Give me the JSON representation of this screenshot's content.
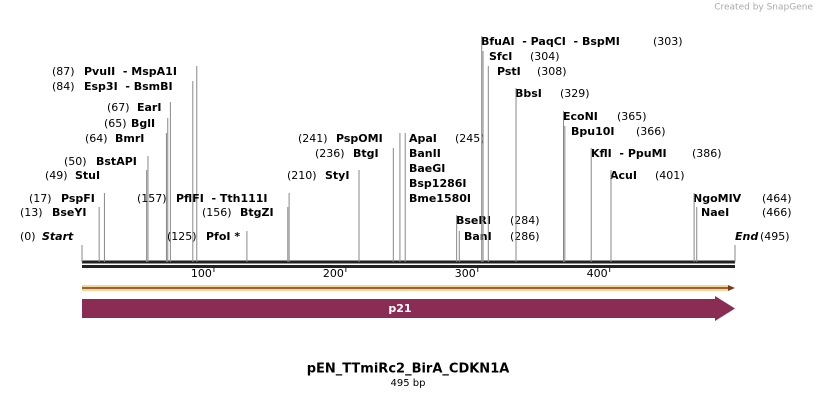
{
  "credit": "Created by SnapGene",
  "title": "pEN_TTmiRc2_BirA_CDKN1A",
  "length_label": "495 bp",
  "ruler_ticks": [
    100,
    200,
    300,
    400
  ],
  "ends": [
    {
      "position": "(0)",
      "names": [
        "Start"
      ]
    },
    {
      "position": "(495)",
      "names": [
        "End"
      ]
    }
  ],
  "feature": {
    "label": "p21"
  },
  "sites": [
    {
      "position": "(13)",
      "names": [
        "BseYI"
      ]
    },
    {
      "position": "(17)",
      "names": [
        "PspFI"
      ]
    },
    {
      "position": "(49)",
      "names": [
        "StuI"
      ]
    },
    {
      "position": "(50)",
      "names": [
        "BstAPI"
      ]
    },
    {
      "position": "(64)",
      "names": [
        "BmrI"
      ]
    },
    {
      "position": "(65)",
      "names": [
        "BglI"
      ]
    },
    {
      "position": "(67)",
      "names": [
        "EarI"
      ]
    },
    {
      "position": "(84)",
      "names": [
        "Esp3I  - BsmBI"
      ]
    },
    {
      "position": "(87)",
      "names": [
        "PvuII  - MspA1I"
      ]
    },
    {
      "position": "(125)",
      "names": [
        "PfoI *"
      ]
    },
    {
      "position": "(156)",
      "names": [
        "BtgZI"
      ]
    },
    {
      "position": "(157)",
      "names": [
        "PflFI  - Tth111I"
      ]
    },
    {
      "position": "(210)",
      "names": [
        "StyI"
      ]
    },
    {
      "position": "(236)",
      "names": [
        "BtgI"
      ]
    },
    {
      "position": "(241)",
      "names": [
        "PspOMI"
      ]
    },
    {
      "position": "(245)",
      "names": [
        "ApaI",
        "BanII",
        "BaeGI",
        "Bsp1286I",
        "Bme1580I"
      ]
    },
    {
      "position": "(284)",
      "names": [
        "BseRI"
      ]
    },
    {
      "position": "(286)",
      "names": [
        "BanI"
      ]
    },
    {
      "position": "(303)",
      "names": [
        "BfuAI  - PaqCI  - BspMI"
      ]
    },
    {
      "position": "(304)",
      "names": [
        "SfcI"
      ]
    },
    {
      "position": "(308)",
      "names": [
        "PstI"
      ]
    },
    {
      "position": "(329)",
      "names": [
        "BbsI"
      ]
    },
    {
      "position": "(365)",
      "names": [
        "EcoNI"
      ]
    },
    {
      "position": "(366)",
      "names": [
        "Bpu10I"
      ]
    },
    {
      "position": "(386)",
      "names": [
        "KflI  - PpuMI"
      ]
    },
    {
      "position": "(401)",
      "names": [
        "AcuI"
      ]
    },
    {
      "position": "(464)",
      "names": [
        "NgoMIV"
      ]
    },
    {
      "position": "(466)",
      "names": [
        "NaeI"
      ]
    }
  ]
}
